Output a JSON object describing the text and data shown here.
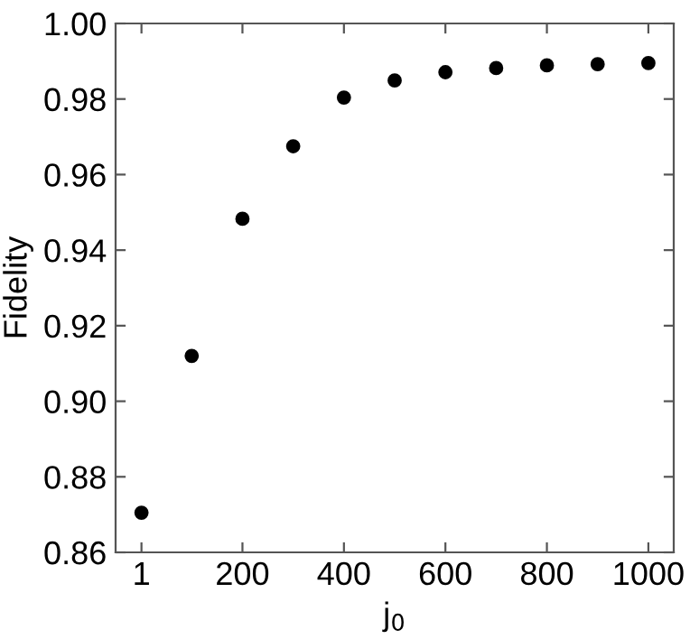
{
  "chart_data": {
    "type": "scatter",
    "xlabel": "j$_{0}$",
    "ylabel": "Fidelity",
    "x": [
      1,
      100,
      200,
      300,
      400,
      500,
      600,
      700,
      800,
      900,
      1000
    ],
    "series": [
      {
        "color": "#000000",
        "values": [
          0.8705,
          0.912,
          0.9483,
          0.9675,
          0.9804,
          0.9849,
          0.9871,
          0.9882,
          0.9889,
          0.9892,
          0.9895
        ]
      }
    ],
    "xlim": [
      -50,
      1050
    ],
    "xticks": [
      1,
      200,
      400,
      600,
      800,
      1000
    ],
    "ylim": [
      0.86,
      1.0
    ],
    "yticks": [
      {
        "value": 0.86,
        "label": "0.86"
      },
      {
        "value": 0.88,
        "label": "0.88"
      },
      {
        "value": 0.9,
        "label": "0.90"
      },
      {
        "value": 0.92,
        "label": "0.92"
      },
      {
        "value": 0.94,
        "label": "0.94"
      },
      {
        "value": 0.96,
        "label": "0.96"
      },
      {
        "value": 0.98,
        "label": "0.98"
      },
      {
        "value": 1.0,
        "label": "1.00"
      }
    ],
    "grid": false,
    "marker": "circle"
  }
}
